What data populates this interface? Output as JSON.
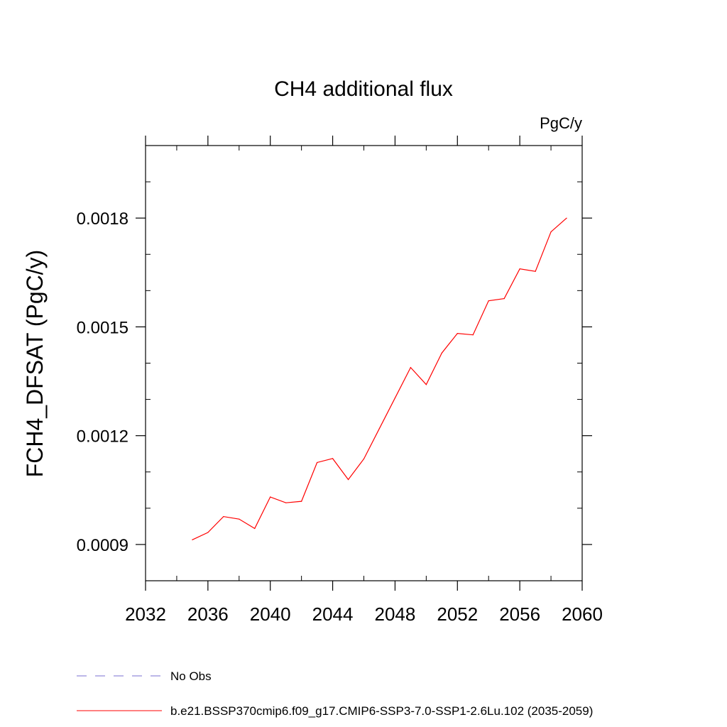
{
  "chart_data": {
    "type": "line",
    "title": "CH4 additional flux",
    "units_label": "PgC/y",
    "ylabel": "FCH4_DFSAT  (PgC/y)",
    "xlabel": "",
    "xlim": [
      2032,
      2060
    ],
    "ylim": [
      0.0008,
      0.002
    ],
    "x_ticks": [
      2032,
      2036,
      2040,
      2044,
      2048,
      2052,
      2056,
      2060
    ],
    "x_tick_labels": [
      "2032",
      "2036",
      "2040",
      "2044",
      "2048",
      "2052",
      "2056",
      "2060"
    ],
    "y_ticks": [
      0.0009,
      0.0012,
      0.0015,
      0.0018
    ],
    "y_tick_labels": [
      "0.0009",
      "0.0012",
      "0.0015",
      "0.0018"
    ],
    "grid": false,
    "legend_position": "bottom",
    "series": [
      {
        "name": "b.e21.BSSP370cmip6.f09_g17.CMIP6-SSP3-7.0-SSP1-2.6Lu.102 (2035-2059)",
        "color": "#ff0000",
        "style": "solid",
        "x": [
          2035,
          2036,
          2037,
          2038,
          2039,
          2040,
          2041,
          2042,
          2043,
          2044,
          2045,
          2046,
          2047,
          2048,
          2049,
          2050,
          2051,
          2052,
          2053,
          2054,
          2055,
          2056,
          2057,
          2058,
          2059
        ],
        "y": [
          0.000913,
          0.000933,
          0.000977,
          0.00097,
          0.000944,
          0.001031,
          0.001015,
          0.001019,
          0.001126,
          0.001137,
          0.001079,
          0.001136,
          0.00122,
          0.001304,
          0.001388,
          0.001341,
          0.001428,
          0.001482,
          0.001478,
          0.001572,
          0.001578,
          0.00166,
          0.001653,
          0.001762,
          0.0018
        ]
      }
    ],
    "legend": [
      {
        "label": "No Obs",
        "color": "#7a6fd0",
        "style": "dashed"
      },
      {
        "label": "b.e21.BSSP370cmip6.f09_g17.CMIP6-SSP3-7.0-SSP1-2.6Lu.102 (2035-2059)",
        "color": "#ff0000",
        "style": "solid"
      }
    ]
  }
}
